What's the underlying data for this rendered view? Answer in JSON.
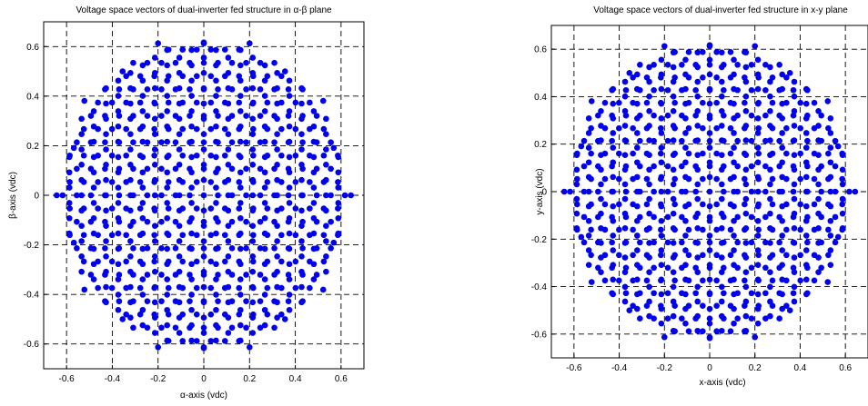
{
  "chart_data": [
    {
      "type": "scatter",
      "title": "Voltage space vectors of dual-inverter fed structure in α-β plane",
      "xlabel": "α-axis (vdc)",
      "ylabel": "β-axis (vdc)",
      "xlim": [
        -0.7,
        0.7
      ],
      "ylim": [
        -0.7,
        0.7
      ],
      "xticks": [
        -0.6,
        -0.4,
        -0.2,
        0,
        0.2,
        0.4,
        0.6
      ],
      "yticks": [
        -0.6,
        -0.4,
        -0.2,
        0,
        0.2,
        0.4,
        0.6
      ],
      "xtick_labels": [
        "-0.6",
        "-0.4",
        "-0.2",
        "0",
        "0.2",
        "0.4",
        "0.6"
      ],
      "ytick_labels": [
        "-0.6",
        "-0.4",
        "-0.2",
        "0",
        "0.2",
        "0.4",
        "0.6"
      ],
      "grid": true,
      "grid_style": "dashed",
      "marker_color": "#0000ee",
      "marker": "filled-circle",
      "points": [
        [
          0.643,
          0
        ],
        [
          -0.643,
          0
        ],
        [
          0.522,
          0.381
        ],
        [
          -0.522,
          0.381
        ],
        [
          0.522,
          -0.381
        ],
        [
          -0.522,
          -0.381
        ],
        [
          0.568,
          0.191
        ],
        [
          -0.568,
          0.191
        ],
        [
          0.568,
          -0.191
        ],
        [
          -0.568,
          -0.191
        ],
        [
          0.2,
          0.613
        ],
        [
          -0.2,
          0.613
        ],
        [
          0.2,
          -0.613
        ],
        [
          -0.2,
          -0.613
        ],
        [
          0,
          0.613
        ],
        [
          0,
          -0.613
        ],
        [
          0.355,
          0.5
        ],
        [
          -0.355,
          0.5
        ],
        [
          0.355,
          -0.5
        ],
        [
          -0.355,
          -0.5
        ]
      ],
      "points_note": "",
      "grid_lattice": {
        "spacing": 0.0617,
        "rings": 10,
        "rotation_deg": 0
      }
    },
    {
      "type": "scatter",
      "title": "Voltage space vectors of dual-inverter fed structure in x-y plane",
      "xlabel": "x-axis (vdc)",
      "ylabel": "y-axis (vdc)",
      "xlim": [
        -0.7,
        0.7
      ],
      "ylim": [
        -0.7,
        0.7
      ],
      "xticks": [
        -0.6,
        -0.4,
        -0.2,
        0,
        0.2,
        0.4,
        0.6
      ],
      "yticks": [
        -0.6,
        -0.4,
        -0.2,
        0,
        0.2,
        0.4,
        0.6
      ],
      "xtick_labels": [
        "-0.6",
        "-0.4",
        "-0.2",
        "0",
        "0.2",
        "0.4",
        "0.6"
      ],
      "ytick_labels": [
        "-0.6",
        "-0.4",
        "-0.2",
        "0",
        "0.2",
        "0.4",
        "0.6"
      ],
      "grid": true,
      "grid_style": "dashed",
      "marker_color": "#0000ee",
      "marker": "filled-circle",
      "points": [
        [
          0.643,
          0
        ],
        [
          -0.643,
          0
        ],
        [
          0.522,
          0.381
        ],
        [
          -0.522,
          0.381
        ],
        [
          0.522,
          -0.381
        ],
        [
          -0.522,
          -0.381
        ],
        [
          0.568,
          0.191
        ],
        [
          -0.568,
          0.191
        ],
        [
          0.568,
          -0.191
        ],
        [
          -0.568,
          -0.191
        ],
        [
          0.2,
          0.613
        ],
        [
          -0.2,
          0.613
        ],
        [
          0.2,
          -0.613
        ],
        [
          -0.2,
          -0.613
        ],
        [
          0,
          0.613
        ],
        [
          0,
          -0.613
        ],
        [
          0.355,
          0.5
        ],
        [
          -0.355,
          0.5
        ],
        [
          0.355,
          -0.5
        ],
        [
          -0.355,
          -0.5
        ]
      ],
      "grid_lattice": {
        "spacing": 0.0617,
        "rings": 10,
        "rotation_deg": 0
      }
    }
  ]
}
